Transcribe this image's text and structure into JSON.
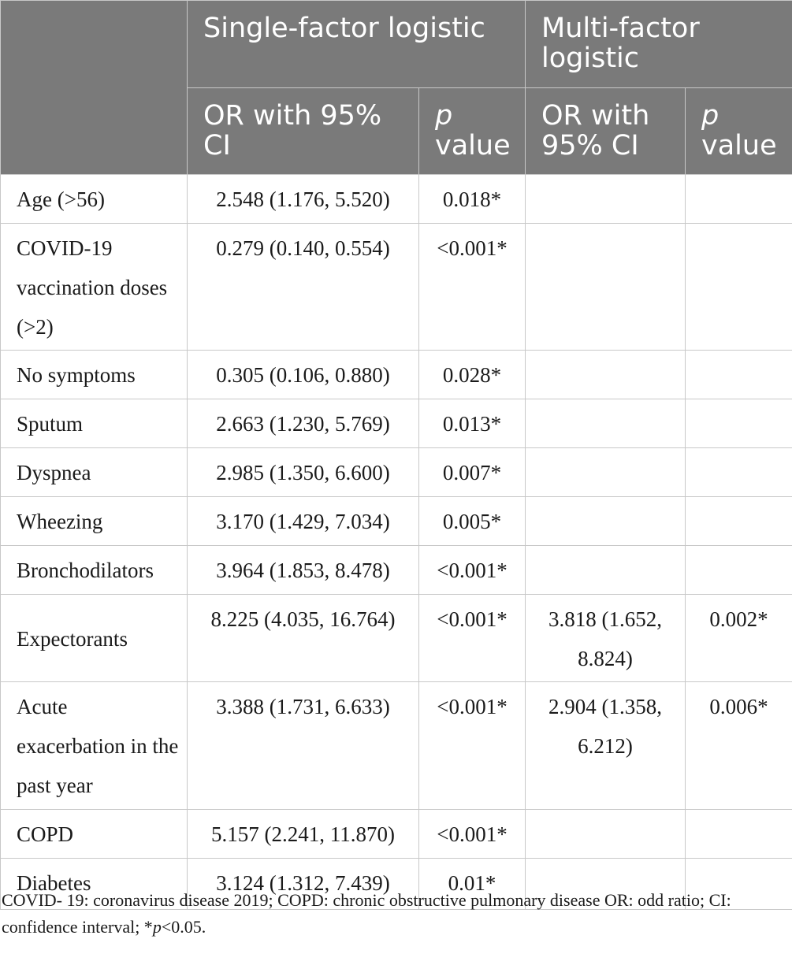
{
  "header": {
    "group_single": "Single-factor logistic",
    "group_multi": "Multi-factor logistic",
    "or_single": "OR with 95% CI",
    "p_letter_single": "p",
    "p_word_single": "value",
    "or_multi": "OR with 95% CI",
    "p_letter_multi": "p",
    "p_word_multi": "value"
  },
  "rows": [
    {
      "label": "Age (>56)",
      "single_or": "2.548 (1.176, 5.520)",
      "single_p": "0.018*",
      "multi_or": "",
      "multi_p": ""
    },
    {
      "label": "COVID-19 vaccination doses (>2)",
      "single_or": "0.279 (0.140, 0.554)",
      "single_p": "<0.001*",
      "multi_or": "",
      "multi_p": ""
    },
    {
      "label": "No symptoms",
      "single_or": "0.305 (0.106, 0.880)",
      "single_p": "0.028*",
      "multi_or": "",
      "multi_p": ""
    },
    {
      "label": "Sputum",
      "single_or": "2.663 (1.230, 5.769)",
      "single_p": "0.013*",
      "multi_or": "",
      "multi_p": ""
    },
    {
      "label": "Dyspnea",
      "single_or": "2.985 (1.350, 6.600)",
      "single_p": "0.007*",
      "multi_or": "",
      "multi_p": ""
    },
    {
      "label": "Wheezing",
      "single_or": "3.170 (1.429, 7.034)",
      "single_p": "0.005*",
      "multi_or": "",
      "multi_p": ""
    },
    {
      "label": "Bronchodilators",
      "single_or": "3.964 (1.853, 8.478)",
      "single_p": "<0.001*",
      "multi_or": "",
      "multi_p": ""
    },
    {
      "label": "Expectorants",
      "single_or": "8.225 (4.035, 16.764)",
      "single_p": "<0.001*",
      "multi_or": "3.818 (1.652, 8.824)",
      "multi_p": "0.002*"
    },
    {
      "label": "Acute exacerbation in the past year",
      "single_or": "3.388 (1.731, 6.633)",
      "single_p": "<0.001*",
      "multi_or": "2.904 (1.358, 6.212)",
      "multi_p": "0.006*"
    },
    {
      "label": "COPD",
      "single_or": "5.157 (2.241, 11.870)",
      "single_p": "<0.001*",
      "multi_or": "",
      "multi_p": ""
    },
    {
      "label": "Diabetes",
      "single_or": "3.124 (1.312, 7.439)",
      "single_p": "0.01*",
      "multi_or": "",
      "multi_p": ""
    }
  ],
  "footnote": {
    "part1": "COVID- 19: coronavirus disease 2019; COPD: chronic obstructive pulmonary disease OR: odd ratio; CI: confidence interval; *",
    "p_letter": "p",
    "part2": "<0.05."
  },
  "colors": {
    "header_bg": "#7a7a7a",
    "header_text": "#ffffff",
    "grid": "#c8c8c8",
    "body_text": "#1a1a1a"
  }
}
